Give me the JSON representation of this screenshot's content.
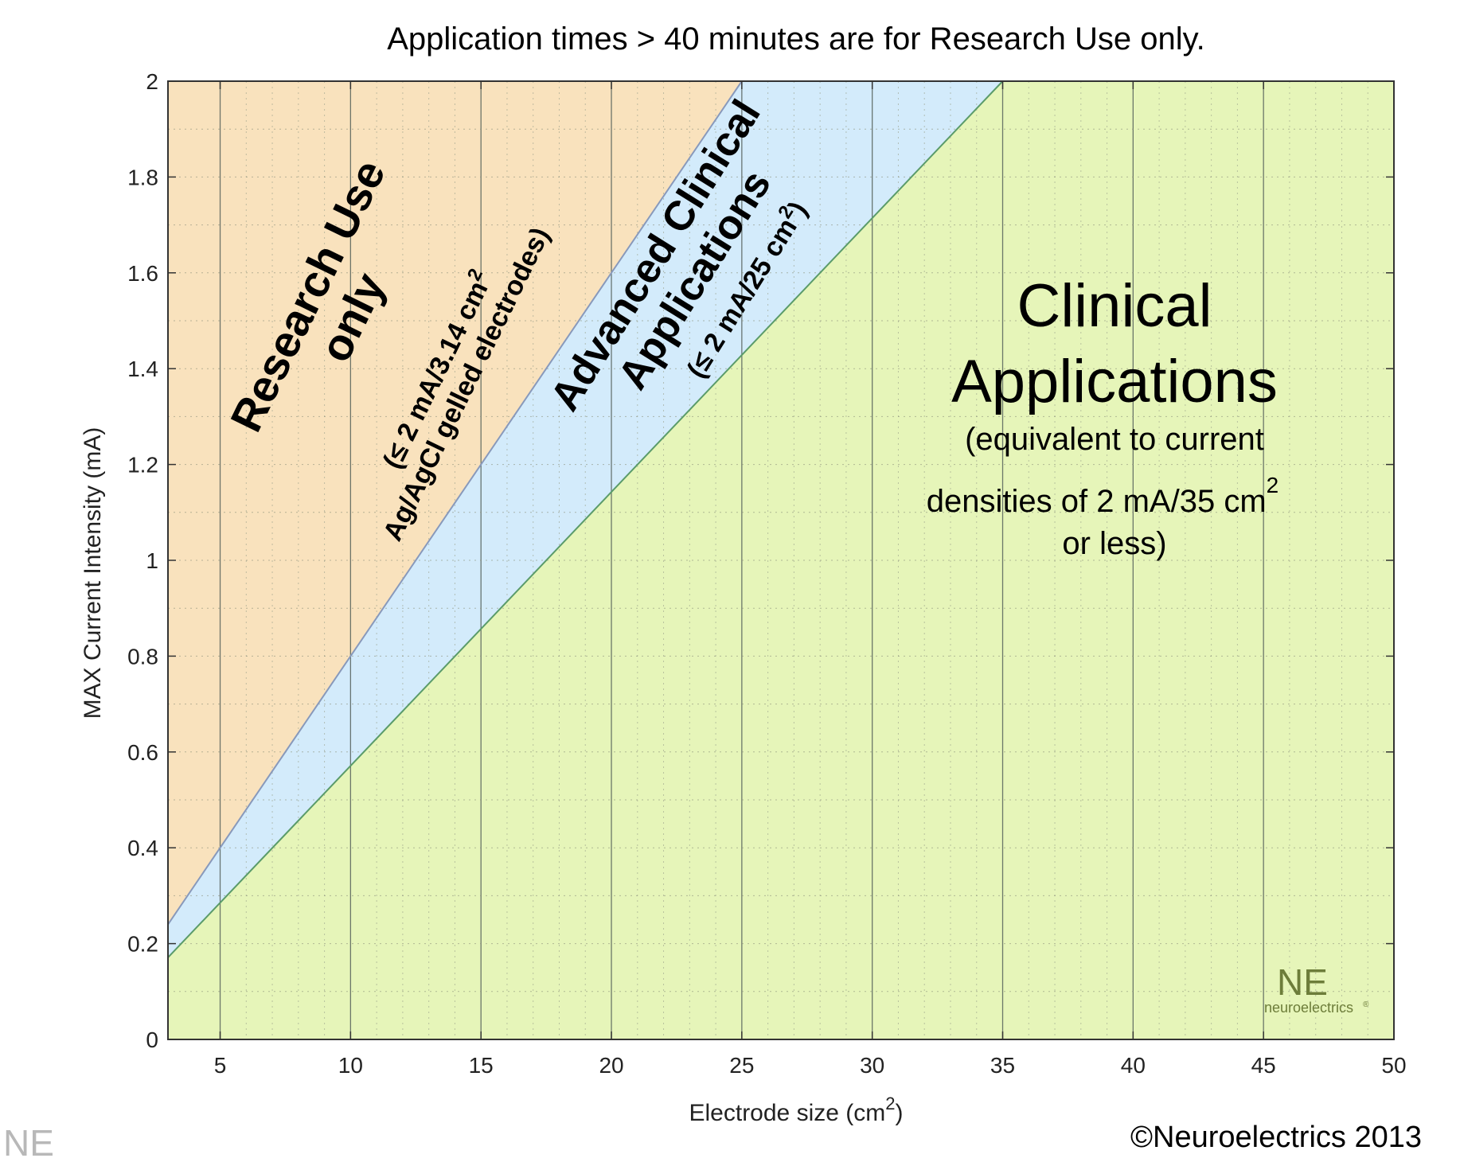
{
  "chart_data": {
    "type": "area",
    "title": "Application times > 40 minutes are for Research Use only.",
    "xlabel": "Electrode size (cm",
    "xlabel_sup": "2",
    "xlabel_end": ")",
    "ylabel": "MAX Current Intensity (mA)",
    "xlim": [
      3,
      50
    ],
    "ylim": [
      0,
      2
    ],
    "x_ticks": [
      5,
      10,
      15,
      20,
      25,
      30,
      35,
      40,
      45,
      50
    ],
    "y_ticks": [
      0,
      0.2,
      0.4,
      0.6,
      0.8,
      1,
      1.2,
      1.4,
      1.6,
      1.8,
      2
    ],
    "y_tick_labels": [
      "0",
      "0.2",
      "0.4",
      "0.6",
      "0.8",
      "1",
      "1.2",
      "1.4",
      "1.6",
      "1.8",
      "2"
    ],
    "grid": true,
    "boundaries": [
      {
        "density_divisor": 12.5,
        "description": "Research / Advanced boundary",
        "x": [
          3,
          25
        ],
        "y": [
          0.24,
          2.0
        ]
      },
      {
        "density_divisor": 17.5,
        "description": "Advanced / Clinical boundary",
        "x": [
          3,
          35
        ],
        "y": [
          0.171,
          2.0
        ]
      }
    ],
    "zones": [
      {
        "lines": [
          "Research Use",
          "only"
        ],
        "color": "#f9e2bd"
      },
      {
        "lines": [
          "(≤ 2 mA/3.14 cm",
          "Ag/AgCl gelled electrodes)"
        ],
        "sup": "2"
      },
      {
        "lines": [
          "Advanced Clinical",
          "Applications"
        ],
        "color": "#d3ebfb"
      },
      {
        "lines": [
          "(≤ 2 mA/25 cm",
          ")"
        ],
        "sup": "2"
      },
      {
        "lines": [
          "Clinical",
          "Applications",
          "(equivalent to current",
          "densities of 2 mA/35 cm",
          "or less)"
        ],
        "sup": "2",
        "color": "#e6f5b9"
      }
    ]
  },
  "logo": {
    "letters": "NE",
    "name": "neuroelectrics",
    "mark": "®"
  },
  "copyright": "©Neuroelectrics 2013"
}
